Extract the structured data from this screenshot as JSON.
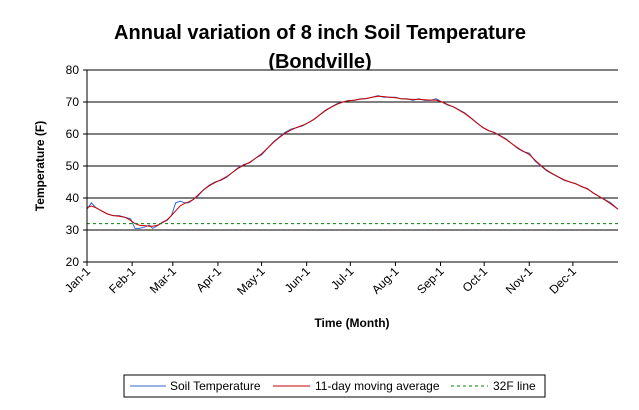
{
  "chart_data": {
    "type": "line",
    "title_line1": "Annual variation of 8 inch Soil Temperature",
    "title_line2": "(Bondville)",
    "xlabel": "Time (Month)",
    "ylabel": "Temperature (F)",
    "ylim": [
      20,
      80
    ],
    "yticks": [
      20,
      30,
      40,
      50,
      60,
      70,
      80
    ],
    "xlim": [
      0,
      365
    ],
    "month_ticks": [
      {
        "label": "Jan-1",
        "day": 0
      },
      {
        "label": "Feb-1",
        "day": 31
      },
      {
        "label": "Mar-1",
        "day": 59
      },
      {
        "label": "Apr-1",
        "day": 90
      },
      {
        "label": "May-1",
        "day": 120
      },
      {
        "label": "Jun-1",
        "day": 151
      },
      {
        "label": "Jul-1",
        "day": 181
      },
      {
        "label": "Aug-1",
        "day": 212
      },
      {
        "label": "Sep-1",
        "day": 243
      },
      {
        "label": "Oct-1",
        "day": 273
      },
      {
        "label": "Nov-1",
        "day": 304
      },
      {
        "label": "Dec-1",
        "day": 334
      }
    ],
    "grid": "horizontal",
    "legend_position": "bottom",
    "series": [
      {
        "name": "Soil Temperature",
        "color": "#3366cc",
        "x": [
          0,
          3,
          6,
          10,
          14,
          18,
          22,
          26,
          30,
          33,
          36,
          40,
          43,
          45,
          47,
          49,
          52,
          55,
          58,
          61,
          64,
          67,
          70,
          73,
          76,
          80,
          84,
          88,
          92,
          96,
          100,
          104,
          108,
          112,
          116,
          120,
          124,
          128,
          132,
          136,
          140,
          144,
          148,
          152,
          156,
          160,
          164,
          168,
          172,
          176,
          180,
          184,
          188,
          192,
          196,
          200,
          204,
          208,
          212,
          216,
          220,
          224,
          228,
          232,
          236,
          240,
          244,
          248,
          252,
          256,
          260,
          264,
          268,
          272,
          276,
          280,
          284,
          288,
          292,
          296,
          300,
          304,
          308,
          312,
          316,
          320,
          324,
          328,
          332,
          336,
          340,
          344,
          348,
          352,
          356,
          360,
          365
        ],
        "y": [
          36.5,
          38.5,
          37.0,
          36.0,
          35.0,
          34.5,
          34.5,
          34.0,
          33.5,
          30.5,
          30.5,
          31.0,
          31.5,
          30.5,
          31.0,
          31.5,
          32.5,
          33.0,
          34.5,
          38.5,
          39.0,
          38.5,
          38.5,
          39.5,
          40.5,
          42.5,
          44.0,
          45.0,
          45.5,
          46.5,
          48.0,
          49.5,
          50.5,
          51.0,
          52.5,
          53.5,
          55.5,
          57.5,
          59.0,
          60.5,
          61.5,
          62.0,
          62.5,
          63.5,
          64.5,
          66.0,
          67.5,
          68.5,
          69.5,
          70.0,
          70.5,
          70.5,
          71.0,
          71.0,
          71.5,
          72.0,
          71.5,
          71.5,
          71.5,
          71.0,
          71.0,
          70.5,
          71.0,
          70.5,
          70.5,
          71.0,
          70.0,
          69.0,
          68.5,
          67.5,
          66.5,
          65.0,
          63.5,
          62.0,
          61.0,
          60.5,
          59.5,
          58.5,
          57.0,
          55.5,
          54.5,
          54.0,
          51.5,
          50.0,
          48.5,
          47.5,
          46.5,
          45.5,
          45.0,
          44.5,
          43.5,
          43.0,
          41.5,
          40.5,
          39.5,
          38.5,
          36.5
        ]
      },
      {
        "name": "11-day moving average",
        "color": "#cc0000",
        "x": [
          0,
          3,
          6,
          10,
          14,
          18,
          22,
          26,
          30,
          33,
          36,
          40,
          43,
          45,
          47,
          49,
          52,
          55,
          58,
          61,
          64,
          67,
          70,
          73,
          76,
          80,
          84,
          88,
          92,
          96,
          100,
          104,
          108,
          112,
          116,
          120,
          124,
          128,
          132,
          136,
          140,
          144,
          148,
          152,
          156,
          160,
          164,
          168,
          172,
          176,
          180,
          184,
          188,
          192,
          196,
          200,
          204,
          208,
          212,
          216,
          220,
          224,
          228,
          232,
          236,
          240,
          244,
          248,
          252,
          256,
          260,
          264,
          268,
          272,
          276,
          280,
          284,
          288,
          292,
          296,
          300,
          304,
          308,
          312,
          316,
          320,
          324,
          328,
          332,
          336,
          340,
          344,
          348,
          352,
          356,
          360,
          365
        ],
        "y": [
          37.0,
          37.5,
          37.0,
          36.0,
          35.0,
          34.5,
          34.3,
          34.0,
          33.0,
          32.0,
          31.5,
          31.3,
          31.2,
          31.2,
          31.3,
          31.6,
          32.3,
          33.2,
          34.5,
          36.0,
          37.5,
          38.3,
          38.8,
          39.5,
          40.8,
          42.5,
          43.8,
          44.8,
          45.7,
          46.7,
          48.0,
          49.3,
          50.3,
          51.2,
          52.5,
          53.8,
          55.5,
          57.3,
          58.8,
          60.2,
          61.2,
          62.0,
          62.7,
          63.5,
          64.6,
          66.0,
          67.3,
          68.4,
          69.3,
          70.0,
          70.4,
          70.6,
          70.9,
          71.1,
          71.5,
          71.8,
          71.7,
          71.5,
          71.3,
          71.0,
          70.9,
          70.8,
          70.8,
          70.7,
          70.6,
          70.6,
          70.0,
          69.2,
          68.4,
          67.4,
          66.3,
          64.9,
          63.4,
          62.1,
          61.1,
          60.4,
          59.4,
          58.3,
          57.0,
          55.7,
          54.6,
          53.6,
          51.8,
          50.2,
          48.7,
          47.6,
          46.6,
          45.7,
          45.0,
          44.4,
          43.6,
          42.8,
          41.6,
          40.5,
          39.4,
          38.2,
          36.5
        ]
      },
      {
        "name": "32F line",
        "color": "#008000",
        "dashed": true,
        "x": [
          0,
          365
        ],
        "y": [
          32,
          32
        ]
      }
    ]
  }
}
